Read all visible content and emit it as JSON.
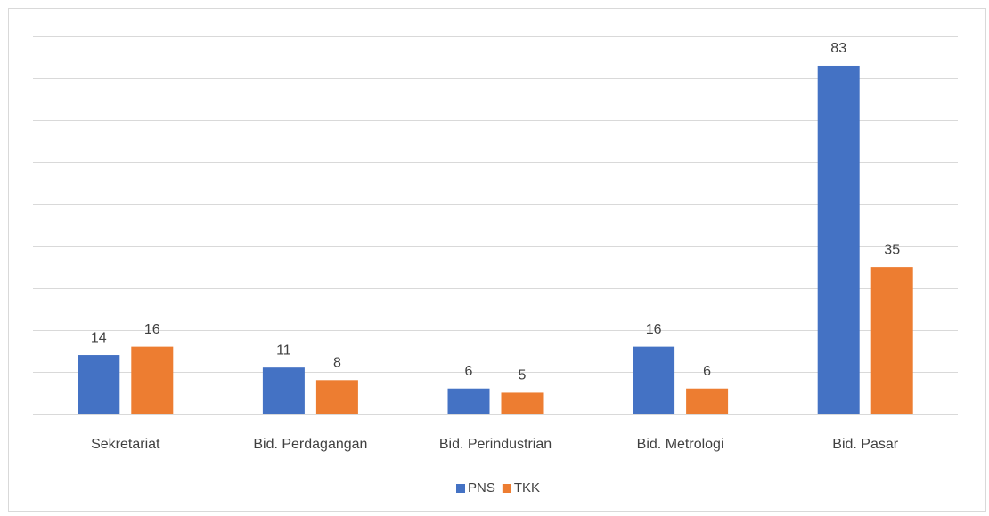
{
  "chart_data": {
    "type": "bar",
    "categories": [
      "Sekretariat",
      "Bid. Perdagangan",
      "Bid. Perindustrian",
      "Bid. Metrologi",
      "Bid. Pasar"
    ],
    "series": [
      {
        "name": "PNS",
        "color": "#4472c4",
        "values": [
          14,
          11,
          6,
          16,
          83
        ]
      },
      {
        "name": "TKK",
        "color": "#ed7d31",
        "values": [
          16,
          8,
          5,
          6,
          35
        ]
      }
    ],
    "ylim": [
      0,
      90
    ],
    "yticks": [
      0,
      10,
      20,
      30,
      40,
      50,
      60,
      70,
      80,
      90
    ],
    "grid": true,
    "legend": "bottom"
  }
}
